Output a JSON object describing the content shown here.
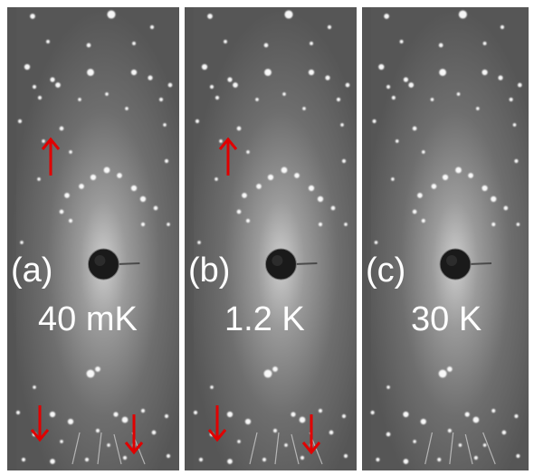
{
  "panels": [
    {
      "label": "(a)",
      "temperature": "40 mK",
      "arrows": true
    },
    {
      "label": "(b)",
      "temperature": "1.2 K",
      "arrows": true
    },
    {
      "label": "(c)",
      "temperature": "30 K",
      "arrows": false
    }
  ],
  "colors": {
    "arrow": "#e00000",
    "background": "#6b6b6b",
    "text": "#ffffff"
  }
}
